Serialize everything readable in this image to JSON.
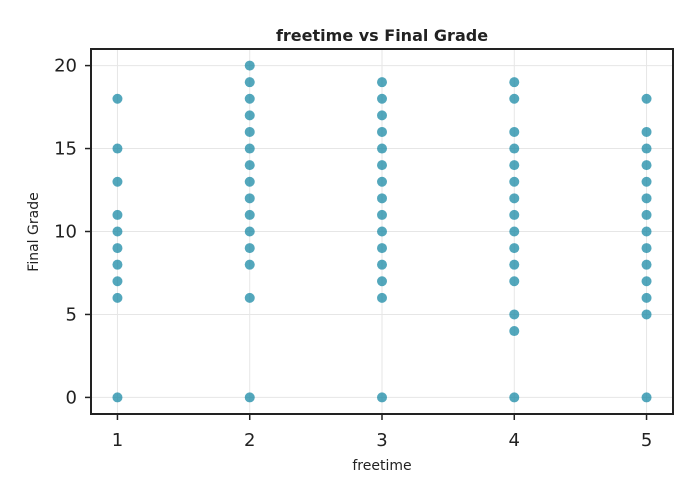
{
  "chart_data": {
    "type": "scatter",
    "title": "freetime vs Final Grade",
    "xlabel": "freetime",
    "ylabel": "Final Grade",
    "xlim": [
      0.8,
      5.2
    ],
    "ylim": [
      -1,
      21
    ],
    "xticks": [
      1,
      2,
      3,
      4,
      5
    ],
    "yticks": [
      0,
      5,
      10,
      15,
      20
    ],
    "grid": true,
    "color": "#1a8aa6",
    "points": [
      {
        "x": 1,
        "y": 0
      },
      {
        "x": 1,
        "y": 6
      },
      {
        "x": 1,
        "y": 7
      },
      {
        "x": 1,
        "y": 8
      },
      {
        "x": 1,
        "y": 9
      },
      {
        "x": 1,
        "y": 10
      },
      {
        "x": 1,
        "y": 11
      },
      {
        "x": 1,
        "y": 13
      },
      {
        "x": 1,
        "y": 15
      },
      {
        "x": 1,
        "y": 18
      },
      {
        "x": 2,
        "y": 0
      },
      {
        "x": 2,
        "y": 6
      },
      {
        "x": 2,
        "y": 8
      },
      {
        "x": 2,
        "y": 9
      },
      {
        "x": 2,
        "y": 10
      },
      {
        "x": 2,
        "y": 11
      },
      {
        "x": 2,
        "y": 12
      },
      {
        "x": 2,
        "y": 13
      },
      {
        "x": 2,
        "y": 14
      },
      {
        "x": 2,
        "y": 15
      },
      {
        "x": 2,
        "y": 16
      },
      {
        "x": 2,
        "y": 17
      },
      {
        "x": 2,
        "y": 18
      },
      {
        "x": 2,
        "y": 19
      },
      {
        "x": 2,
        "y": 20
      },
      {
        "x": 3,
        "y": 0
      },
      {
        "x": 3,
        "y": 6
      },
      {
        "x": 3,
        "y": 7
      },
      {
        "x": 3,
        "y": 8
      },
      {
        "x": 3,
        "y": 9
      },
      {
        "x": 3,
        "y": 10
      },
      {
        "x": 3,
        "y": 11
      },
      {
        "x": 3,
        "y": 12
      },
      {
        "x": 3,
        "y": 13
      },
      {
        "x": 3,
        "y": 14
      },
      {
        "x": 3,
        "y": 15
      },
      {
        "x": 3,
        "y": 16
      },
      {
        "x": 3,
        "y": 17
      },
      {
        "x": 3,
        "y": 18
      },
      {
        "x": 3,
        "y": 19
      },
      {
        "x": 4,
        "y": 0
      },
      {
        "x": 4,
        "y": 4
      },
      {
        "x": 4,
        "y": 5
      },
      {
        "x": 4,
        "y": 7
      },
      {
        "x": 4,
        "y": 8
      },
      {
        "x": 4,
        "y": 9
      },
      {
        "x": 4,
        "y": 10
      },
      {
        "x": 4,
        "y": 11
      },
      {
        "x": 4,
        "y": 12
      },
      {
        "x": 4,
        "y": 13
      },
      {
        "x": 4,
        "y": 14
      },
      {
        "x": 4,
        "y": 15
      },
      {
        "x": 4,
        "y": 16
      },
      {
        "x": 4,
        "y": 18
      },
      {
        "x": 4,
        "y": 19
      },
      {
        "x": 5,
        "y": 0
      },
      {
        "x": 5,
        "y": 5
      },
      {
        "x": 5,
        "y": 6
      },
      {
        "x": 5,
        "y": 7
      },
      {
        "x": 5,
        "y": 8
      },
      {
        "x": 5,
        "y": 9
      },
      {
        "x": 5,
        "y": 10
      },
      {
        "x": 5,
        "y": 11
      },
      {
        "x": 5,
        "y": 12
      },
      {
        "x": 5,
        "y": 13
      },
      {
        "x": 5,
        "y": 14
      },
      {
        "x": 5,
        "y": 15
      },
      {
        "x": 5,
        "y": 16
      },
      {
        "x": 5,
        "y": 18
      }
    ]
  }
}
